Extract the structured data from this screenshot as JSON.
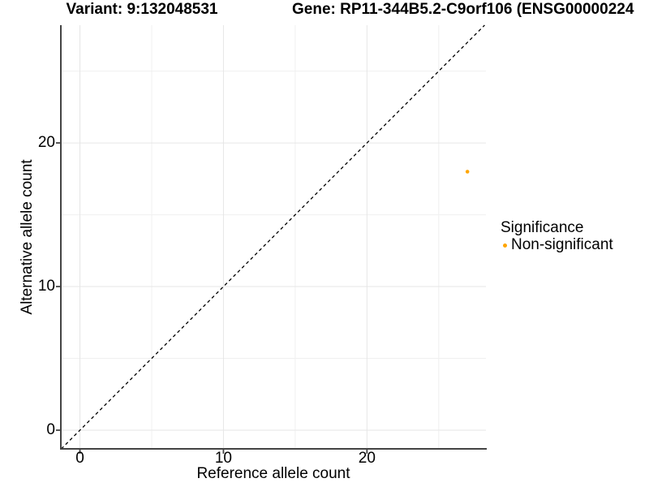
{
  "page": {
    "background": "#FFFFFF"
  },
  "titles": {
    "left": "Variant: 9:132048531",
    "right": "Gene: RP11-344B5.2-C9orf106 (ENSG00000224"
  },
  "chart_data": {
    "type": "scatter",
    "title_left": "Variant: 9:132048531",
    "title_right": "Gene: RP11-344B5.2-C9orf106 (ENSG00000224",
    "xlabel": "Reference allele count",
    "ylabel": "Alternative allele count",
    "xlim": [
      -1.33,
      28.29
    ],
    "ylim": [
      -1.3,
      28.2
    ],
    "x_major_ticks": [
      0,
      10,
      20
    ],
    "y_major_ticks": [
      0,
      10,
      20
    ],
    "x_minor_ticks": [
      5,
      15,
      25
    ],
    "y_minor_ticks": [
      5,
      15,
      25
    ],
    "grid": true,
    "identity_line": {
      "slope": 1,
      "intercept": 0,
      "linetype": "dashed",
      "color": "#000000"
    },
    "points": [
      {
        "x": 27,
        "y": 18,
        "series": "Non-significant",
        "color": "#FFA500",
        "radius_px": 2.3
      }
    ],
    "legend": {
      "title": "Significance",
      "position": "right",
      "items": [
        {
          "label": "Non-significant",
          "color": "#FFA500"
        }
      ]
    },
    "colors": {
      "axis": "#444444",
      "grid_major": "#E6E6E6",
      "grid_minor": "#F0F0F0",
      "text": "#000000",
      "background": "#FFFFFF"
    }
  }
}
